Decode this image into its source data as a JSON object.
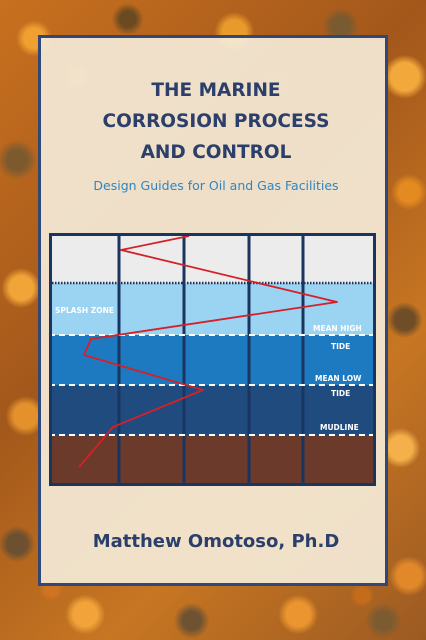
{
  "cover": {
    "title_lines": [
      "THE MARINE",
      "CORROSION PROCESS",
      "AND CONTROL"
    ],
    "subtitle": "Design Guides for Oil and Gas Facilities",
    "author": "Matthew Omotoso, Ph.D"
  },
  "diagram": {
    "zone_labels": {
      "splash_zone": "SPLASH ZONE",
      "mean_high": "MEAN HIGH",
      "mean_high_tide": "TIDE",
      "mean_low": "MEAN LOW",
      "mean_low_tide": "TIDE",
      "mudline": "MUDLINE"
    },
    "colors": {
      "atmosphere": "#ececec",
      "splash": "#9bd3f2",
      "tidal": "#1e7ac0",
      "submerged": "#1f4b7f",
      "mud": "#6b3a2a",
      "corrosion_line": "#d52027",
      "frame": "#1a3560"
    }
  }
}
